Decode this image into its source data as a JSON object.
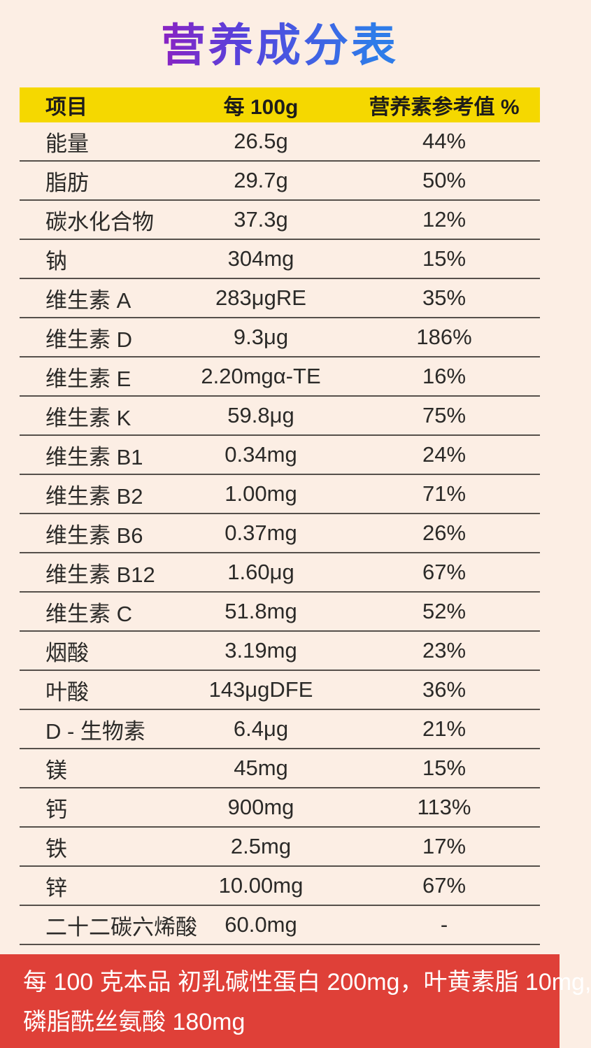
{
  "page": {
    "title": "营养成分表"
  },
  "table": {
    "header": {
      "item": "项目",
      "per_100g": "每 100g",
      "nrv": "营养素参考值 %"
    },
    "rows": [
      {
        "item": "能量",
        "value": "26.5g",
        "nrv": "44%"
      },
      {
        "item": "脂肪",
        "value": "29.7g",
        "nrv": "50%"
      },
      {
        "item": "碳水化合物",
        "value": "37.3g",
        "nrv": "12%"
      },
      {
        "item": "钠",
        "value": "304mg",
        "nrv": "15%"
      },
      {
        "item": "维生素 A",
        "value": "283μgRE",
        "nrv": "35%"
      },
      {
        "item": "维生素 D",
        "value": "9.3μg",
        "nrv": "186%"
      },
      {
        "item": "维生素 E",
        "value": "2.20mgα-TE",
        "nrv": "16%"
      },
      {
        "item": "维生素 K",
        "value": "59.8μg",
        "nrv": "75%"
      },
      {
        "item": "维生素 B1",
        "value": "0.34mg",
        "nrv": "24%"
      },
      {
        "item": "维生素 B2",
        "value": "1.00mg",
        "nrv": "71%"
      },
      {
        "item": "维生素 B6",
        "value": "0.37mg",
        "nrv": "26%"
      },
      {
        "item": "维生素 B12",
        "value": "1.60μg",
        "nrv": "67%"
      },
      {
        "item": "维生素 C",
        "value": "51.8mg",
        "nrv": "52%"
      },
      {
        "item": "烟酸",
        "value": "3.19mg",
        "nrv": "23%"
      },
      {
        "item": "叶酸",
        "value": "143μgDFE",
        "nrv": "36%"
      },
      {
        "item": "D - 生物素",
        "value": "6.4μg",
        "nrv": "21%"
      },
      {
        "item": "镁",
        "value": "45mg",
        "nrv": "15%"
      },
      {
        "item": "钙",
        "value": "900mg",
        "nrv": "113%"
      },
      {
        "item": "铁",
        "value": "2.5mg",
        "nrv": "17%"
      },
      {
        "item": "锌",
        "value": "10.00mg",
        "nrv": "67%"
      },
      {
        "item": "二十二碳六烯酸",
        "value": "60.0mg",
        "nrv": "-"
      }
    ]
  },
  "footer": {
    "line1": "每 100 克本品 初乳碱性蛋白 200mg，叶黄素脂 10mg,",
    "line2": "磷脂酰丝氨酸 180mg"
  },
  "colors": {
    "background": "#fceee4",
    "header_background": "#f5d800",
    "footer_background": "#df4038",
    "footer_text": "#ffffff",
    "divider": "#56504b",
    "body_text": "#2b2a28",
    "title_gradient_start": "#8a22c2",
    "title_gradient_end": "#2e7ce9"
  },
  "chart_data": {
    "type": "table",
    "title": "营养成分表",
    "columns": [
      "项目",
      "每 100g",
      "营养素参考值 %"
    ],
    "rows": [
      [
        "能量",
        "26.5g",
        "44%"
      ],
      [
        "脂肪",
        "29.7g",
        "50%"
      ],
      [
        "碳水化合物",
        "37.3g",
        "12%"
      ],
      [
        "钠",
        "304mg",
        "15%"
      ],
      [
        "维生素 A",
        "283μgRE",
        "35%"
      ],
      [
        "维生素 D",
        "9.3μg",
        "186%"
      ],
      [
        "维生素 E",
        "2.20mgα-TE",
        "16%"
      ],
      [
        "维生素 K",
        "59.8μg",
        "75%"
      ],
      [
        "维生素 B1",
        "0.34mg",
        "24%"
      ],
      [
        "维生素 B2",
        "1.00mg",
        "71%"
      ],
      [
        "维生素 B6",
        "0.37mg",
        "26%"
      ],
      [
        "维生素 B12",
        "1.60μg",
        "67%"
      ],
      [
        "维生素 C",
        "51.8mg",
        "52%"
      ],
      [
        "烟酸",
        "3.19mg",
        "23%"
      ],
      [
        "叶酸",
        "143μgDFE",
        "36%"
      ],
      [
        "D - 生物素",
        "6.4μg",
        "21%"
      ],
      [
        "镁",
        "45mg",
        "15%"
      ],
      [
        "钙",
        "900mg",
        "113%"
      ],
      [
        "铁",
        "2.5mg",
        "17%"
      ],
      [
        "锌",
        "10.00mg",
        "67%"
      ],
      [
        "二十二碳六烯酸",
        "60.0mg",
        "-"
      ]
    ],
    "annotations": [
      "每 100 克本品 初乳碱性蛋白 200mg，叶黄素脂 10mg,",
      "磷脂酰丝氨酸 180mg"
    ],
    "layout": {
      "grid": "horizontal row dividers",
      "header_style": "yellow band",
      "note_style": "red band at bottom"
    }
  }
}
